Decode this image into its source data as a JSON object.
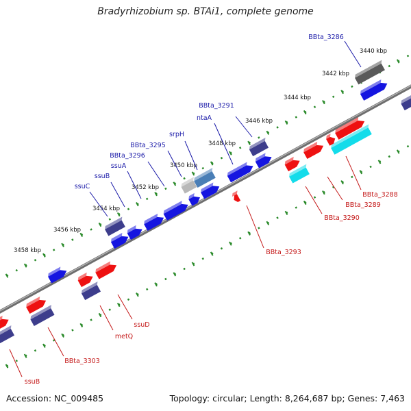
{
  "title": "Bradyrhizobium sp. BTAi1, complete genome",
  "footer": {
    "accession": "Accession: NC_009485",
    "summary": "Topology: circular; Length: 8,264,687 bp; Genes: 7,463"
  },
  "colors": {
    "backbone": "#8a8a8a",
    "tick": "#2a8a2a",
    "label_blue": "#1a1aa8",
    "label_red": "#c41818",
    "gene_blue": "#1515e0",
    "gene_navy": "#3d3d8c",
    "gene_red": "#ee1111",
    "gene_cyan": "#13dcea",
    "gene_gray": "#5a5a5a",
    "gene_lightgray": "#b8b8b8",
    "gene_steel": "#4a7eb6"
  },
  "scale_labels": [
    "3440 kbp",
    "3442 kbp",
    "3444 kbp",
    "3446 kbp",
    "3448 kbp",
    "3450 kbp",
    "3452 kbp",
    "3454 kbp",
    "3456 kbp",
    "3458 kbp"
  ],
  "gene_labels_upper": [
    "BBta_3286",
    "BBta_3291",
    "ntaA",
    "srpH",
    "BBta_3295",
    "BBta_3296",
    "ssuA",
    "ssuB",
    "ssuC"
  ],
  "gene_labels_lower": [
    "BBta_3288",
    "BBta_3289",
    "BBta_3290",
    "BBta_3293",
    "ssuD",
    "metQ",
    "BBta_3303",
    "ssuB"
  ]
}
